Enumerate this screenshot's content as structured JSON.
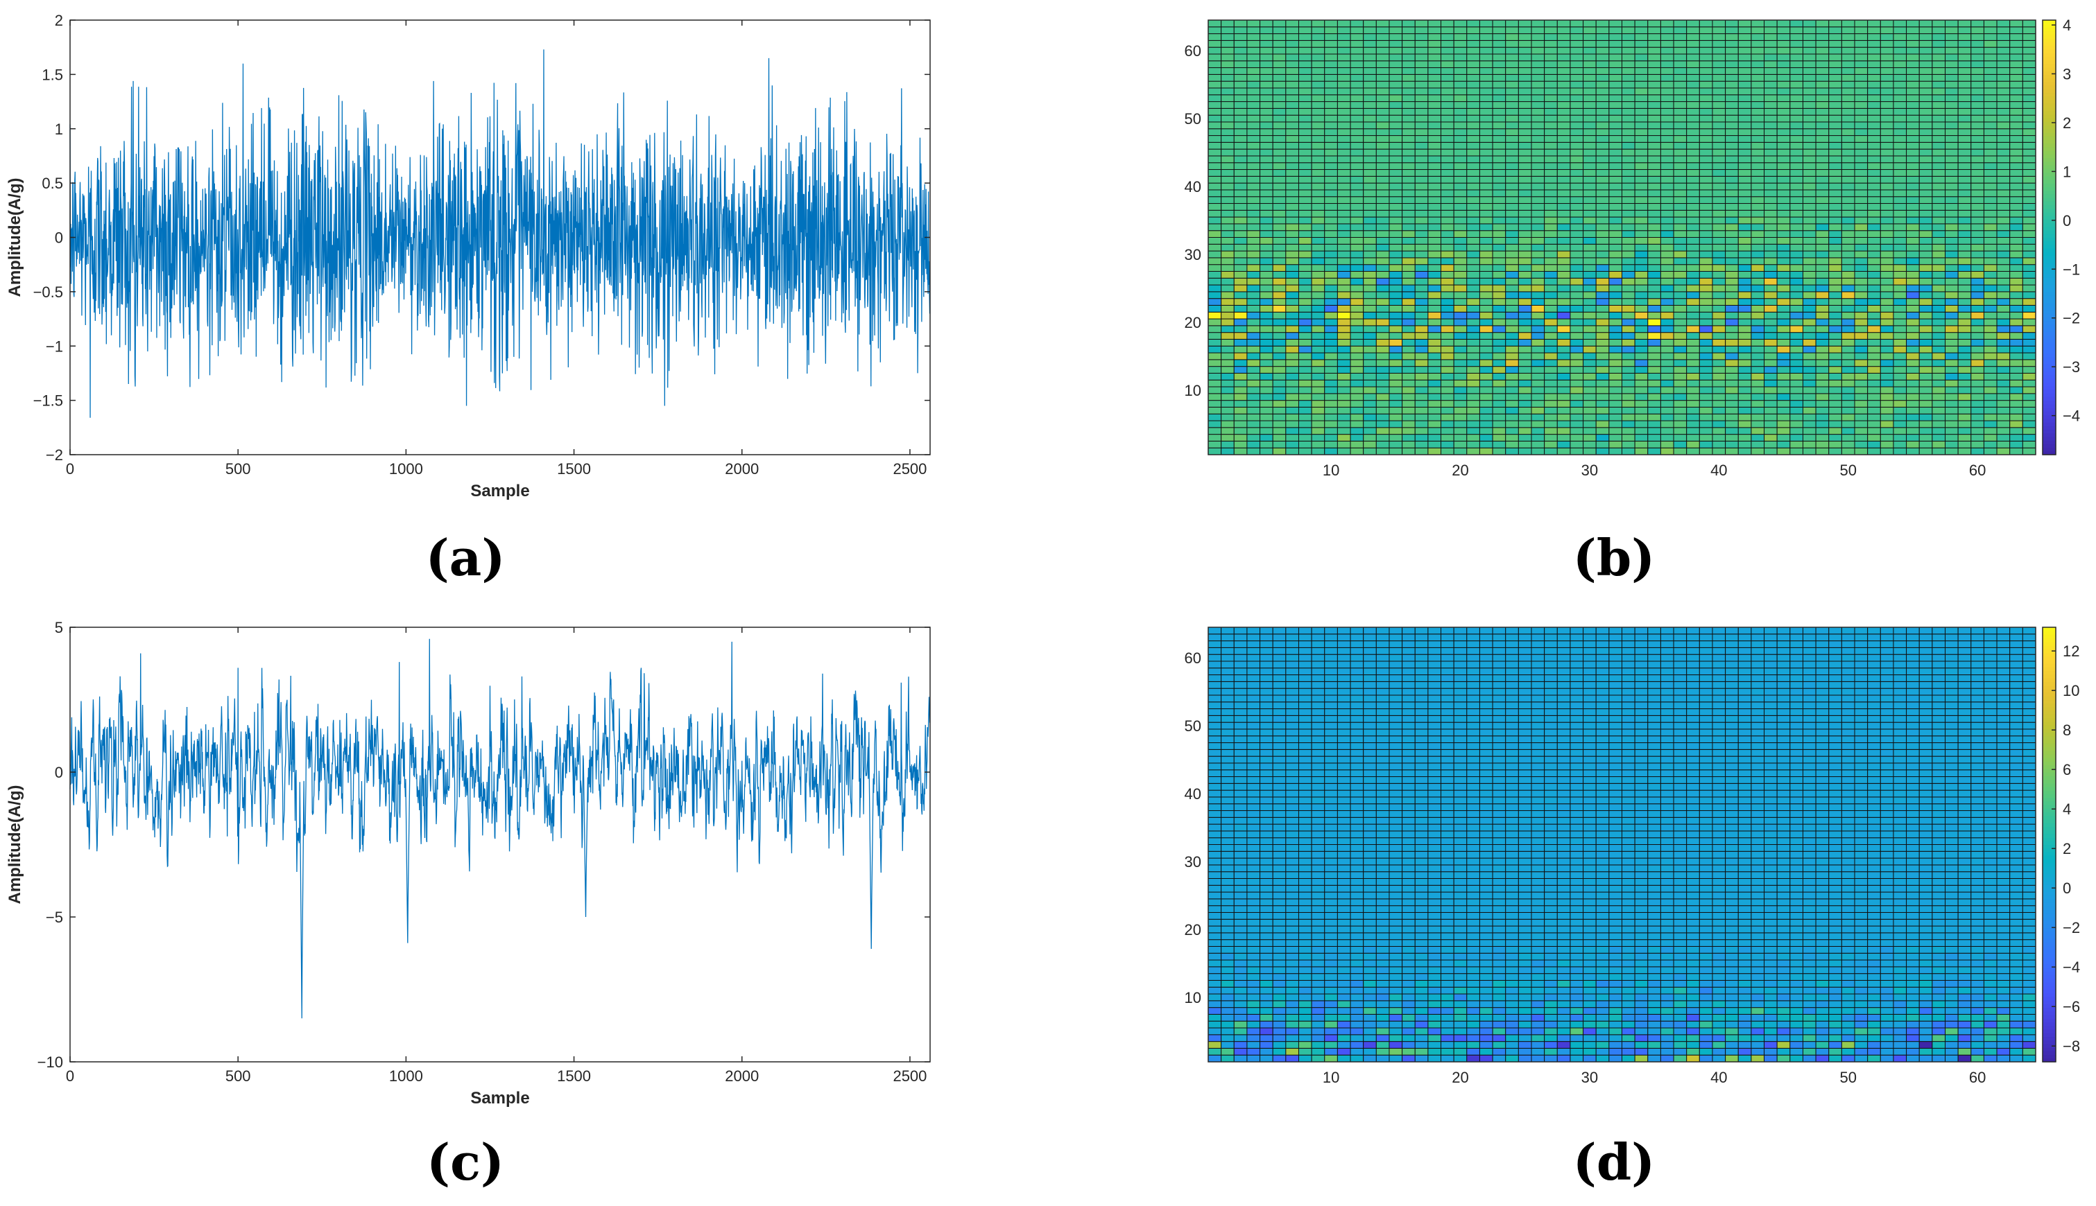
{
  "panels": [
    {
      "id": "a",
      "label": "(a)"
    },
    {
      "id": "b",
      "label": "(b)"
    },
    {
      "id": "c",
      "label": "(c)"
    },
    {
      "id": "d",
      "label": "(d)"
    }
  ],
  "chart_data": [
    {
      "panel": "a",
      "type": "line",
      "xlabel": "Sample",
      "ylabel": "Amplitude(A/g)",
      "xlim": [
        0,
        2560
      ],
      "ylim": [
        -2,
        2
      ],
      "xticks": [
        "0",
        "500",
        "1000",
        "1500",
        "2000",
        "2500"
      ],
      "yticks": [
        "2",
        "1.5",
        "1",
        "0.5",
        "0",
        "−0.5",
        "−1",
        "−1.5",
        "−2"
      ],
      "line_color": "#0072BD",
      "signal": {
        "kind": "broadband_vibration",
        "n_samples": 2560,
        "rms": 0.5,
        "peak_max": 1.73,
        "peak_min": -1.66
      },
      "notable_peaks": [
        {
          "x": 515,
          "y": 1.6
        },
        {
          "x": 1410,
          "y": 1.73
        },
        {
          "x": 2080,
          "y": 1.65
        },
        {
          "x": 1180,
          "y": -1.55
        },
        {
          "x": 1770,
          "y": -1.55
        },
        {
          "x": 60,
          "y": -1.66
        }
      ]
    },
    {
      "panel": "b",
      "type": "heatmap",
      "rows": 64,
      "cols": 64,
      "xlim": [
        0.5,
        64.5
      ],
      "ylim": [
        0.5,
        64.5
      ],
      "xticks": [
        "10",
        "20",
        "30",
        "40",
        "50",
        "60"
      ],
      "yticks": [
        "10",
        "20",
        "30",
        "40",
        "50",
        "60"
      ],
      "colorbar": {
        "min": -4.8,
        "max": 4.1,
        "ticks": [
          "4",
          "3",
          "2",
          "1",
          "0",
          "−1",
          "−2",
          "−3",
          "−4"
        ]
      },
      "colormap": "parula",
      "background_value": 0.4,
      "active_rows": [
        1,
        30
      ],
      "active_spread": 1.5
    },
    {
      "panel": "c",
      "type": "line",
      "xlabel": "Sample",
      "ylabel": "Amplitude(A/g)",
      "xlim": [
        0,
        2560
      ],
      "ylim": [
        -10,
        5
      ],
      "xticks": [
        "0",
        "500",
        "1000",
        "1500",
        "2000",
        "2500"
      ],
      "yticks": [
        "5",
        "0",
        "−5",
        "−10"
      ],
      "line_color": "#0072BD",
      "signal": {
        "kind": "impulsive_vibration",
        "n_samples": 2560,
        "rms": 1.3,
        "peak_max": 4.6
      },
      "notable_peaks": [
        {
          "x": 690,
          "y": -8.5
        },
        {
          "x": 1005,
          "y": -5.9
        },
        {
          "x": 1535,
          "y": -5.0
        },
        {
          "x": 2385,
          "y": -6.1
        },
        {
          "x": 1070,
          "y": 4.6
        },
        {
          "x": 1970,
          "y": 4.5
        },
        {
          "x": 210,
          "y": 4.1
        },
        {
          "x": 980,
          "y": 3.8
        }
      ]
    },
    {
      "panel": "d",
      "type": "heatmap",
      "rows": 64,
      "cols": 64,
      "xlim": [
        0.5,
        64.5
      ],
      "ylim": [
        0.5,
        64.5
      ],
      "xticks": [
        "10",
        "20",
        "30",
        "40",
        "50",
        "60"
      ],
      "yticks": [
        "10",
        "20",
        "30",
        "40",
        "50",
        "60"
      ],
      "colorbar": {
        "min": -8.8,
        "max": 13.2,
        "ticks": [
          "12",
          "10",
          "8",
          "6",
          "4",
          "2",
          "0",
          "−2",
          "−4",
          "−6",
          "−8"
        ]
      },
      "colormap": "parula",
      "background_value": 0.0,
      "active_rows": [
        1,
        12
      ],
      "active_spread": 3.5
    }
  ]
}
